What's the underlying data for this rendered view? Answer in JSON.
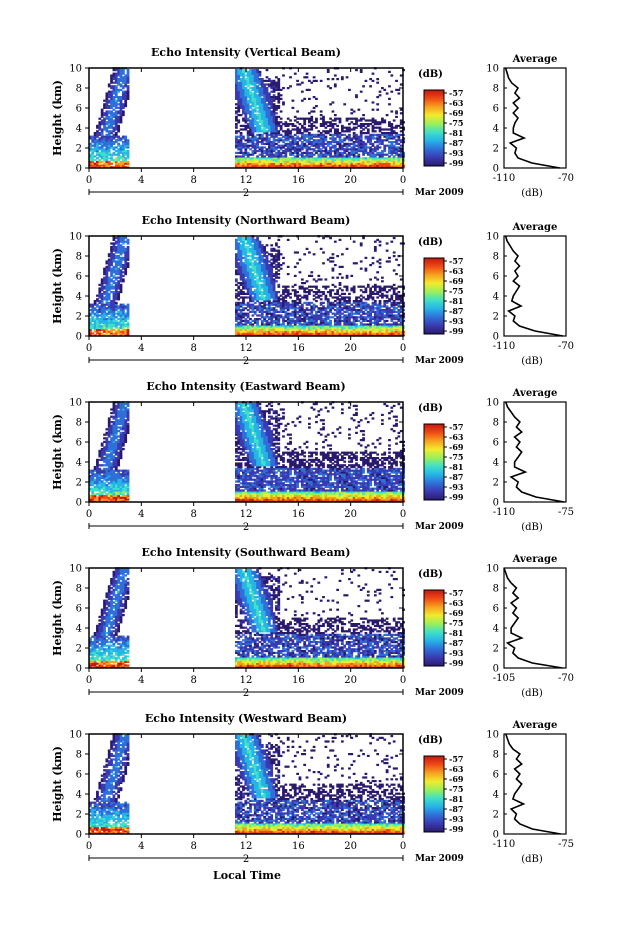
{
  "colorbar": {
    "unit_label": "(dB)",
    "ticks": [
      "-57",
      "-63",
      "-69",
      "-75",
      "-81",
      "-87",
      "-93",
      "-99"
    ],
    "colors": [
      "#2a1a6e",
      "#3a3ab0",
      "#2f6fd8",
      "#27b3e6",
      "#3fe0c8",
      "#9bef5a",
      "#f2ea2e",
      "#f7a11f",
      "#ee4a16",
      "#c21810"
    ]
  },
  "date_label": "Mar 2009",
  "x_axis_label": "Local Time",
  "panels": [
    {
      "id": "vertical",
      "title": "Echo Intensity (Vertical Beam)",
      "avg_label": "Average",
      "avg_xticks": [
        "-110",
        "-70"
      ],
      "avg_xunit": "(dB)"
    },
    {
      "id": "northward",
      "title": "Echo Intensity (Northward Beam)",
      "avg_label": "Average",
      "avg_xticks": [
        "-110",
        "-70"
      ],
      "avg_xunit": "(dB)"
    },
    {
      "id": "eastward",
      "title": "Echo Intensity (Eastward Beam)",
      "avg_label": "Average",
      "avg_xticks": [
        "-110",
        "-75"
      ],
      "avg_xunit": "(dB)"
    },
    {
      "id": "southward",
      "title": "Echo Intensity (Southward Beam)",
      "avg_label": "Average",
      "avg_xticks": [
        "-105",
        "-70"
      ],
      "avg_xunit": "(dB)"
    },
    {
      "id": "westward",
      "title": "Echo Intensity (Westward Beam)",
      "avg_label": "Average",
      "avg_xticks": [
        "-110",
        "-75"
      ],
      "avg_xunit": "(dB)"
    }
  ],
  "chart_data": {
    "type": "heatmap",
    "ylabel": "Height (km)",
    "xlabel": "Local Time",
    "x_ticks": [
      "0",
      "4",
      "8",
      "12",
      "16",
      "20",
      "0"
    ],
    "x_sub_label": "2",
    "y_ticks": [
      "0",
      "2",
      "4",
      "6",
      "8",
      "10"
    ],
    "xlim": [
      0,
      24
    ],
    "ylim": [
      0,
      10
    ],
    "color_scale_db": [
      -99,
      -57
    ],
    "data_gap_hours": [
      3,
      11
    ],
    "average_profiles": [
      {
        "beam": "vertical",
        "xlim": [
          -110,
          -70
        ],
        "height_km": [
          0,
          0.5,
          1,
          1.5,
          2,
          2.5,
          3,
          3.5,
          4,
          4.5,
          5,
          5.5,
          6,
          6.5,
          7,
          7.5,
          8,
          8.5,
          9,
          9.5,
          10
        ],
        "db": [
          -74,
          -92,
          -101,
          -103,
          -102,
          -106,
          -97,
          -104,
          -104,
          -103,
          -101,
          -104,
          -101,
          -104,
          -100,
          -103,
          -101,
          -105,
          -107,
          -108,
          -109
        ]
      },
      {
        "beam": "northward",
        "xlim": [
          -110,
          -70
        ],
        "height_km": [
          0,
          0.5,
          1,
          1.5,
          2,
          2.5,
          3,
          3.5,
          4,
          4.5,
          5,
          5.5,
          6,
          6.5,
          7,
          7.5,
          8,
          8.5,
          9,
          9.5,
          10
        ],
        "db": [
          -72,
          -90,
          -100,
          -104,
          -103,
          -107,
          -99,
          -105,
          -104,
          -102,
          -100,
          -104,
          -101,
          -103,
          -100,
          -103,
          -101,
          -104,
          -106,
          -108,
          -109
        ]
      },
      {
        "beam": "eastward",
        "xlim": [
          -110,
          -75
        ],
        "height_km": [
          0,
          0.5,
          1,
          1.5,
          2,
          2.5,
          3,
          3.5,
          4,
          4.5,
          5,
          5.5,
          6,
          6.5,
          7,
          7.5,
          8,
          8.5,
          9,
          9.5,
          10
        ],
        "db": [
          -76,
          -92,
          -100,
          -103,
          -102,
          -106,
          -98,
          -104,
          -104,
          -102,
          -100,
          -103,
          -101,
          -104,
          -100,
          -103,
          -101,
          -104,
          -106,
          -108,
          -109
        ]
      },
      {
        "beam": "southward",
        "xlim": [
          -105,
          -70
        ],
        "height_km": [
          0,
          0.5,
          1,
          1.5,
          2,
          2.5,
          3,
          3.5,
          4,
          4.5,
          5,
          5.5,
          6,
          6.5,
          7,
          7.5,
          8,
          8.5,
          9,
          9.5,
          10
        ],
        "db": [
          -72,
          -89,
          -97,
          -100,
          -99,
          -103,
          -95,
          -101,
          -101,
          -99,
          -97,
          -100,
          -98,
          -101,
          -97,
          -100,
          -98,
          -101,
          -103,
          -104,
          -105
        ]
      },
      {
        "beam": "westward",
        "xlim": [
          -110,
          -75
        ],
        "height_km": [
          0,
          0.5,
          1,
          1.5,
          2,
          2.5,
          3,
          3.5,
          4,
          4.5,
          5,
          5.5,
          6,
          6.5,
          7,
          7.5,
          8,
          8.5,
          9,
          9.5,
          10
        ],
        "db": [
          -78,
          -94,
          -101,
          -104,
          -103,
          -106,
          -99,
          -105,
          -104,
          -102,
          -100,
          -103,
          -101,
          -104,
          -100,
          -103,
          -101,
          -105,
          -107,
          -108,
          -109
        ]
      }
    ]
  }
}
